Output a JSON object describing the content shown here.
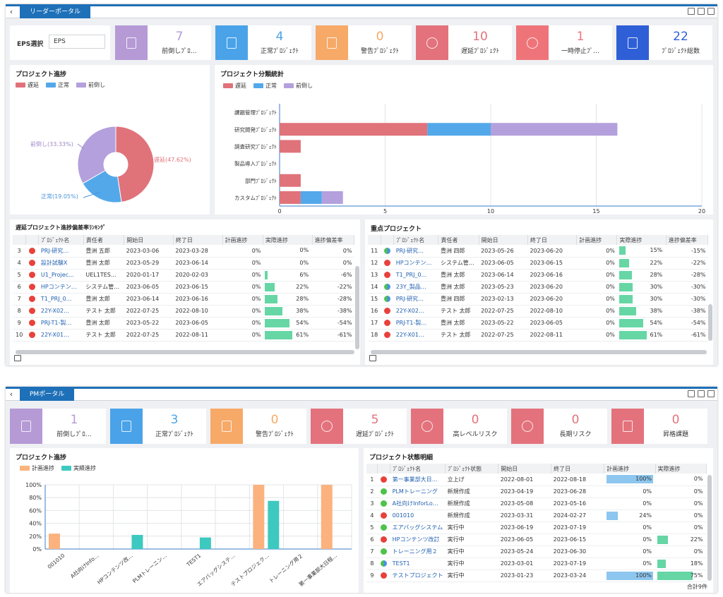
{
  "leader": {
    "tab": "リーダーポータル",
    "eps_label": "EPS選択",
    "eps_value": "EPS",
    "kpis": [
      {
        "value": "7",
        "label": "前倒しﾌﾟﾛ…",
        "icon": "rocket-icon",
        "color": "#b59ad6"
      },
      {
        "value": "4",
        "label": "正常ﾌﾟﾛｼﾞｪｸﾄ",
        "icon": "document-icon",
        "color": "#4aa3e8"
      },
      {
        "value": "0",
        "label": "警告ﾌﾟﾛｼﾞｪｸﾄ",
        "icon": "upload-icon",
        "color": "#f7a968"
      },
      {
        "value": "10",
        "label": "遅延ﾌﾟﾛｼﾞｪｸﾄ",
        "icon": "delay-icon",
        "color": "#e3727c"
      },
      {
        "value": "1",
        "label": "一時停止ﾌﾟ…",
        "icon": "pause-icon",
        "color": "#ef7479"
      },
      {
        "value": "22",
        "label": "ﾌﾟﾛｼﾞｪｸﾄ総数",
        "icon": "presentation-icon",
        "color": "#2f5fd6"
      }
    ],
    "progress": {
      "title": "プロジェクト進捗",
      "legend": [
        {
          "label": "遅延",
          "color": "#e0727a"
        },
        {
          "label": "正常",
          "color": "#53a8ea"
        },
        {
          "label": "前倒し",
          "color": "#b3a0dc"
        }
      ],
      "labels": {
        "delay": "遅延(47.62%)",
        "normal": "正常(19.05%)",
        "early": "前倒し(33.33%)"
      }
    },
    "classification": {
      "title": "プロジェクト分類統計",
      "legend": [
        {
          "label": "遅延",
          "color": "#e0727a"
        },
        {
          "label": "正常",
          "color": "#53a8ea"
        },
        {
          "label": "前倒し",
          "color": "#b3a0dc"
        }
      ]
    },
    "delay_table": {
      "title": "遅延プロジェクト進捗偏差率ﾗﾝｷﾝｸﾞ",
      "headers": [
        "",
        "",
        "ﾌﾟﾛｼﾞｪｸﾄ名",
        "責任者",
        "開始日",
        "終了日",
        "計画進捗",
        "実際進捗",
        "進捗偏差率"
      ],
      "rows": [
        {
          "no": "3",
          "dot": "dred",
          "name": "PRJ-研究…",
          "owner": "豊洲 五郎",
          "start": "2023-03-06",
          "end": "2023-03-28",
          "plan": "0%",
          "actual": "0%",
          "actual_pct": 0,
          "dev": "0%"
        },
        {
          "no": "4",
          "dot": "dred",
          "name": "設計試験X",
          "owner": "豊洲 太郎",
          "start": "2023-05-29",
          "end": "2023-06-14",
          "plan": "0%",
          "actual": "0%",
          "actual_pct": 0,
          "dev": "0%"
        },
        {
          "no": "5",
          "dot": "dred",
          "name": "U1_Projec…",
          "owner": "UEL1TES…",
          "start": "2020-01-17",
          "end": "2020-02-03",
          "plan": "0%",
          "actual": "6%",
          "actual_pct": 6,
          "dev": "-6%"
        },
        {
          "no": "6",
          "dot": "dred",
          "name": "HPコンテン…",
          "owner": "システム管…",
          "start": "2023-06-05",
          "end": "2023-06-15",
          "plan": "0%",
          "actual": "22%",
          "actual_pct": 22,
          "dev": "-22%"
        },
        {
          "no": "7",
          "dot": "dred",
          "name": "T1_PRJ_0…",
          "owner": "豊洲 太郎",
          "start": "2023-06-14",
          "end": "2023-06-16",
          "plan": "0%",
          "actual": "28%",
          "actual_pct": 28,
          "dev": "-28%"
        },
        {
          "no": "8",
          "dot": "dred",
          "name": "22Y-X02…",
          "owner": "テスト 太郎",
          "start": "2022-07-25",
          "end": "2022-08-10",
          "plan": "0%",
          "actual": "38%",
          "actual_pct": 38,
          "dev": "-38%"
        },
        {
          "no": "9",
          "dot": "dred",
          "name": "PRJ-T1-製…",
          "owner": "豊洲 太郎",
          "start": "2023-05-22",
          "end": "2023-06-05",
          "plan": "0%",
          "actual": "54%",
          "actual_pct": 54,
          "dev": "-54%"
        },
        {
          "no": "10",
          "dot": "dred",
          "name": "22Y-X01…",
          "owner": "テスト 太郎",
          "start": "2022-07-25",
          "end": "2022-08-11",
          "plan": "0%",
          "actual": "61%",
          "actual_pct": 61,
          "dev": "-61%"
        }
      ]
    },
    "key_table": {
      "title": "重点プロジェクト",
      "headers": [
        "",
        "",
        "ﾌﾟﾛｼﾞｪｸﾄ名",
        "責任者",
        "開始日",
        "終了日",
        "計画進捗",
        "実際進捗",
        "進捗偏差率"
      ],
      "rows": [
        {
          "no": "11",
          "dot": "dmix",
          "name": "PRJ-研究…",
          "owner": "豊洲 四郎",
          "start": "2023-05-26",
          "end": "2023-06-20",
          "plan": "0%",
          "actual": "15%",
          "actual_pct": 15,
          "dev": "-15%"
        },
        {
          "no": "12",
          "dot": "dred",
          "name": "HPコンテン…",
          "owner": "システム管…",
          "start": "2023-06-05",
          "end": "2023-06-15",
          "plan": "0%",
          "actual": "22%",
          "actual_pct": 22,
          "dev": "-22%"
        },
        {
          "no": "13",
          "dot": "dred",
          "name": "T1_PRJ_0…",
          "owner": "豊洲 太郎",
          "start": "2023-06-14",
          "end": "2023-06-16",
          "plan": "0%",
          "actual": "28%",
          "actual_pct": 28,
          "dev": "-28%"
        },
        {
          "no": "14",
          "dot": "dmix",
          "name": "23Y_製品…",
          "owner": "豊洲 太郎",
          "start": "2023-05-23",
          "end": "2023-06-20",
          "plan": "0%",
          "actual": "30%",
          "actual_pct": 30,
          "dev": "-30%"
        },
        {
          "no": "15",
          "dot": "dmix",
          "name": "PRJ-研究…",
          "owner": "豊洲 四郎",
          "start": "2023-02-13",
          "end": "2023-06-20",
          "plan": "0%",
          "actual": "30%",
          "actual_pct": 30,
          "dev": "-30%"
        },
        {
          "no": "16",
          "dot": "dred",
          "name": "22Y-X02…",
          "owner": "テスト 太郎",
          "start": "2022-07-25",
          "end": "2022-08-10",
          "plan": "0%",
          "actual": "38%",
          "actual_pct": 38,
          "dev": "-38%"
        },
        {
          "no": "17",
          "dot": "dred",
          "name": "PRJ-T1-製…",
          "owner": "豊洲 太郎",
          "start": "2023-05-22",
          "end": "2023-06-05",
          "plan": "0%",
          "actual": "54%",
          "actual_pct": 54,
          "dev": "-54%"
        },
        {
          "no": "18",
          "dot": "dred",
          "name": "22Y-X01…",
          "owner": "テスト 太郎",
          "start": "2022-07-25",
          "end": "2022-08-11",
          "plan": "0%",
          "actual": "61%",
          "actual_pct": 61,
          "dev": "-61%"
        }
      ]
    }
  },
  "pm": {
    "tab": "PMポータル",
    "kpis": [
      {
        "value": "1",
        "label": "前倒しﾌﾟﾛ…",
        "icon": "rocket-icon",
        "color": "#b59ad6"
      },
      {
        "value": "3",
        "label": "正常ﾌﾟﾛｼﾞｪｸﾄ",
        "icon": "document-icon",
        "color": "#4aa3e8"
      },
      {
        "value": "0",
        "label": "警告ﾌﾟﾛｼﾞｪｸﾄ",
        "icon": "upload-icon",
        "color": "#f7a968"
      },
      {
        "value": "5",
        "label": "遅延ﾌﾟﾛｼﾞｪｸﾄ",
        "icon": "delay-icon",
        "color": "#e3727c"
      },
      {
        "value": "0",
        "label": "高レベルリスク",
        "icon": "shield-icon",
        "color": "#e3727c"
      },
      {
        "value": "0",
        "label": "長期リスク",
        "icon": "risk-icon",
        "color": "#e3727c"
      },
      {
        "value": "0",
        "label": "昇格課題",
        "icon": "issue-icon",
        "color": "#e3727c"
      }
    ],
    "progress_title": "プロジェクト進捗",
    "status_table": {
      "title": "プロジェクト状態明細",
      "headers": [
        "",
        "",
        "ﾌﾟﾛｼﾞｪｸﾄ名",
        "ﾌﾟﾛｼﾞｪｸﾄ状態",
        "開始日",
        "終了日",
        "計画進捗",
        "実際進捗"
      ],
      "rows": [
        {
          "no": "1",
          "dot": "dred",
          "name": "第一事業部大日…",
          "state": "立上げ",
          "start": "2022-08-01",
          "end": "2022-08-18",
          "plan": "100%",
          "plan_pct": 100,
          "actual": "0%",
          "actual_pct": 0
        },
        {
          "no": "2",
          "dot": "dgreen",
          "name": "PLMトレーニング",
          "state": "新規作成",
          "start": "2023-04-19",
          "end": "2023-06-28",
          "plan": "0%",
          "plan_pct": 0,
          "actual": "0%",
          "actual_pct": 0
        },
        {
          "no": "3",
          "dot": "dgreen",
          "name": "A社向けInforLo…",
          "state": "新規作成",
          "start": "2023-05-08",
          "end": "2023-05-16",
          "plan": "0%",
          "plan_pct": 0,
          "actual": "0%",
          "actual_pct": 0
        },
        {
          "no": "4",
          "dot": "dred",
          "name": "001010",
          "state": "新規作成",
          "start": "2023-03-31",
          "end": "2024-02-27",
          "plan": "24%",
          "plan_pct": 24,
          "actual": "0%",
          "actual_pct": 0
        },
        {
          "no": "5",
          "dot": "dgreen",
          "name": "エアバッグシステム",
          "state": "実行中",
          "start": "2023-06-19",
          "end": "2023-07-19",
          "plan": "0%",
          "plan_pct": 0,
          "actual": "0%",
          "actual_pct": 0
        },
        {
          "no": "6",
          "dot": "dred",
          "name": "HPコンテンツ改訂",
          "state": "実行中",
          "start": "2023-06-05",
          "end": "2023-06-15",
          "plan": "0%",
          "plan_pct": 0,
          "actual": "22%",
          "actual_pct": 22
        },
        {
          "no": "7",
          "dot": "dgreen",
          "name": "トレーニング用２",
          "state": "実行中",
          "start": "2023-05-24",
          "end": "2023-06-30",
          "plan": "0%",
          "plan_pct": 0,
          "actual": "0%",
          "actual_pct": 0
        },
        {
          "no": "8",
          "dot": "dmix",
          "name": "TEST1",
          "state": "実行中",
          "start": "2023-03-01",
          "end": "2023-07-19",
          "plan": "0%",
          "plan_pct": 0,
          "actual": "18%",
          "actual_pct": 18
        },
        {
          "no": "9",
          "dot": "dred",
          "name": "テストプロジェクト",
          "state": "実行中",
          "start": "2023-01-23",
          "end": "2023-03-24",
          "plan": "100%",
          "plan_pct": 100,
          "actual": "75%",
          "actual_pct": 75
        }
      ],
      "total": "合計9件"
    }
  },
  "chart_data": [
    {
      "type": "pie",
      "title": "プロジェクト進捗",
      "categories": [
        "遅延",
        "正常",
        "前倒し"
      ],
      "values": [
        47.62,
        19.05,
        33.33
      ],
      "colors": [
        "#e0727a",
        "#53a8ea",
        "#b3a0dc"
      ],
      "legend": "top-left"
    },
    {
      "type": "bar",
      "orientation": "horizontal",
      "stacked": true,
      "title": "プロジェクト分類統計",
      "categories": [
        "課題管理ﾌﾟﾛｼﾞｪｸﾄ",
        "研究開発ﾌﾟﾛｼﾞｪｸﾄ",
        "調査研究ﾌﾟﾛｼﾞｪｸﾄ",
        "製品導入ﾌﾟﾛｼﾞｪｸﾄ",
        "部門ﾌﾟﾛｼﾞｪｸﾄ",
        "カスタムﾌﾟﾛｼﾞｪｸﾄ"
      ],
      "series": [
        {
          "name": "遅延",
          "color": "#e0727a",
          "values": [
            0,
            7,
            1,
            0,
            1,
            1
          ]
        },
        {
          "name": "正常",
          "color": "#53a8ea",
          "values": [
            0,
            3,
            0,
            0,
            0,
            1
          ]
        },
        {
          "name": "前倒し",
          "color": "#b3a0dc",
          "values": [
            0,
            6,
            0,
            0,
            0,
            1
          ]
        }
      ],
      "xlim": [
        0,
        20
      ],
      "xticks": [
        "0",
        "5",
        "10",
        "15",
        "20"
      ],
      "grid": true,
      "legend": "top-left"
    },
    {
      "type": "bar",
      "title": "プロジェクト進捗",
      "categories": [
        "001010",
        "A社向けInfo…",
        "HPコンテンツ改…",
        "PLMトレーニン…",
        "TEST1",
        "エアバッグシステ…",
        "テストプロジェク…",
        "トレーニング用２",
        "第一事業部大日程…"
      ],
      "series": [
        {
          "name": "計画進捗",
          "color": "#fbb27e",
          "values": [
            24,
            0,
            0,
            0,
            0,
            0,
            100,
            0,
            100
          ]
        },
        {
          "name": "実績進捗",
          "color": "#3ec9c0",
          "values": [
            0,
            0,
            22,
            0,
            18,
            0,
            75,
            0,
            0
          ]
        }
      ],
      "ylim": [
        0,
        100
      ],
      "yticks": [
        "0%",
        "20%",
        "40%",
        "60%",
        "80%",
        "100%"
      ],
      "grid": true,
      "legend": "top-left"
    }
  ]
}
